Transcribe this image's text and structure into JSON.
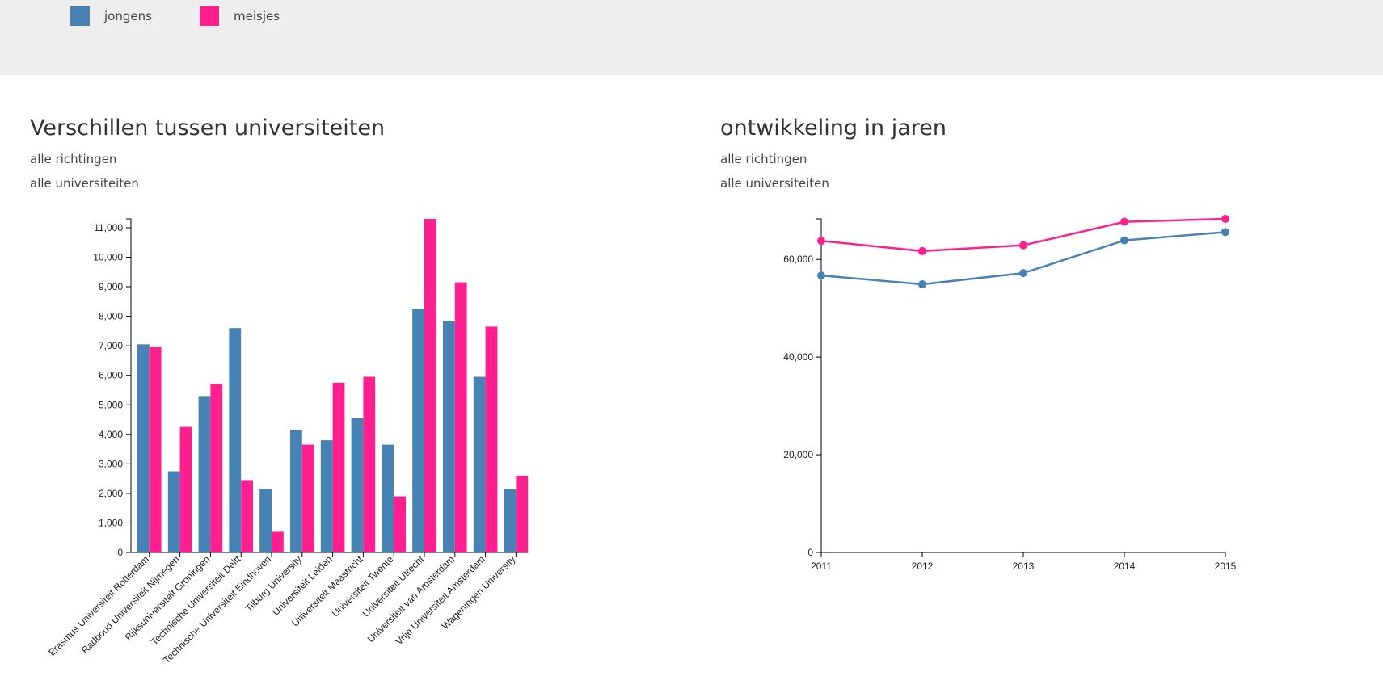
{
  "legend": [
    {
      "label": "jongens",
      "color": "#4682b4"
    },
    {
      "label": "meisjes",
      "color": "#ff1f8f"
    }
  ],
  "left_panel": {
    "title": "Verschillen tussen universiteiten",
    "filter_richting": "alle richtingen",
    "filter_universiteit": "alle universiteiten"
  },
  "right_panel": {
    "title": "ontwikkeling in jaren",
    "filter_richting": "alle richtingen",
    "filter_universiteit": "alle universiteiten"
  },
  "chart_data": [
    {
      "type": "bar",
      "title": "Verschillen tussen universiteiten",
      "categories": [
        "Erasmus Universiteit Rotterdam",
        "Radboud Universiteit Nijmegen",
        "Rijksuniversiteit Groningen",
        "Technische Universiteit Delft",
        "Technische Universiteit Eindhoven",
        "Tilburg University",
        "Universiteit Leiden",
        "Universiteit Maastricht",
        "Universiteit Twente",
        "Universiteit Utrecht",
        "Universiteit van Amsterdam",
        "Vrije Universiteit Amsterdam",
        "Wageningen University"
      ],
      "series": [
        {
          "name": "jongens",
          "color": "#4682b4",
          "values": [
            7050,
            2750,
            5300,
            7600,
            2150,
            4150,
            3800,
            4550,
            3650,
            8250,
            7850,
            5950,
            2150
          ]
        },
        {
          "name": "meisjes",
          "color": "#ff1f8f",
          "values": [
            6950,
            4250,
            5700,
            2450,
            700,
            3650,
            5750,
            5950,
            1900,
            11300,
            9150,
            7650,
            2600
          ]
        }
      ],
      "ylim": [
        0,
        11300
      ],
      "yticks": [
        "0",
        "1,000",
        "2,000",
        "3,000",
        "4,000",
        "5,000",
        "6,000",
        "7,000",
        "8,000",
        "9,000",
        "10,000",
        "11,000"
      ],
      "ytick_values": [
        0,
        1000,
        2000,
        3000,
        4000,
        5000,
        6000,
        7000,
        8000,
        9000,
        10000,
        11000
      ]
    },
    {
      "type": "line",
      "title": "ontwikkeling in jaren",
      "x": [
        "2011",
        "2012",
        "2013",
        "2014",
        "2015"
      ],
      "series": [
        {
          "name": "jongens",
          "color": "#4682b4",
          "values": [
            56700,
            54900,
            57200,
            63900,
            65600
          ]
        },
        {
          "name": "meisjes",
          "color": "#ff1f8f",
          "values": [
            63800,
            61700,
            62900,
            67700,
            68300
          ]
        }
      ],
      "ylim": [
        0,
        68300
      ],
      "yticks": [
        "0",
        "20,000",
        "40,000",
        "60,000"
      ],
      "ytick_values": [
        0,
        20000,
        40000,
        60000
      ]
    }
  ]
}
